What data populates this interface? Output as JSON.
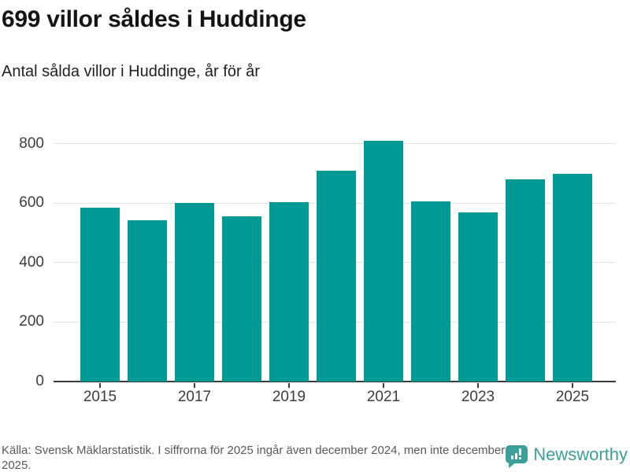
{
  "header": {
    "title": "699 villor såldes i Huddinge",
    "subtitle": "Antal sålda villor i Huddinge, år för år"
  },
  "chart_data": {
    "type": "bar",
    "categories": [
      "2015",
      "2016",
      "2017",
      "2018",
      "2019",
      "2020",
      "2021",
      "2022",
      "2023",
      "2024",
      "2025"
    ],
    "values": [
      585,
      542,
      600,
      557,
      603,
      709,
      810,
      605,
      570,
      680,
      699
    ],
    "title": "699 villor såldes i Huddinge",
    "subtitle": "Antal sålda villor i Huddinge, år för år",
    "xlabel": "",
    "ylabel": "",
    "ylim": [
      0,
      860
    ],
    "yticks": [
      0,
      200,
      400,
      600,
      800
    ],
    "xtick_labels": [
      "2015",
      "2017",
      "2019",
      "2021",
      "2023",
      "2025"
    ],
    "grid": true,
    "legend": false,
    "bar_color": "#009a94"
  },
  "footer": {
    "source": "Källa: Svensk Mäklarstatistik. I siffrorna för 2025 ingår även december 2024, men inte december 2025.",
    "brand_name": "Newsworthy"
  },
  "colors": {
    "bar": "#009a94",
    "brand": "#3d9e9a",
    "grid": "#e2e2e2",
    "axis": "#3c3c3c",
    "title_text": "#141414",
    "muted_text": "#595959"
  }
}
